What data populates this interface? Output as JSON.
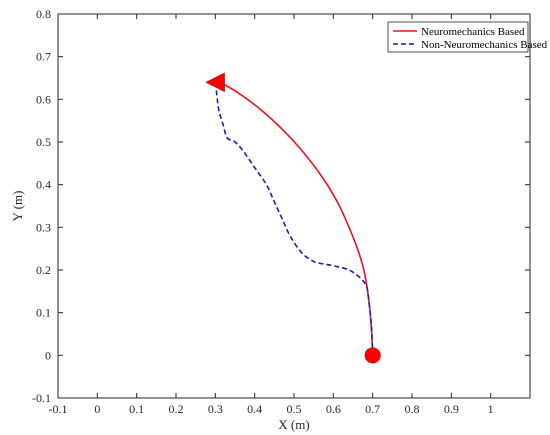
{
  "chart_data": {
    "type": "line",
    "xlabel": "X (m)",
    "ylabel": "Y (m)",
    "xlim": [
      -0.1,
      1.1
    ],
    "ylim": [
      -0.1,
      0.8
    ],
    "xticks": [
      -0.1,
      0,
      0.1,
      0.2,
      0.3,
      0.4,
      0.5,
      0.6,
      0.7,
      0.8,
      0.9,
      1
    ],
    "yticks": [
      -0.1,
      0,
      0.1,
      0.2,
      0.3,
      0.4,
      0.5,
      0.6,
      0.7,
      0.8
    ],
    "grid": false,
    "legend_position": "top-right",
    "series": [
      {
        "name": "Neuromechanics Based",
        "style": "solid",
        "color": "#e8141b",
        "x": [
          0.7,
          0.697,
          0.69,
          0.68,
          0.665,
          0.64,
          0.61,
          0.57,
          0.52,
          0.47,
          0.41,
          0.35,
          0.3
        ],
        "y": [
          0.0,
          0.06,
          0.13,
          0.19,
          0.24,
          0.3,
          0.36,
          0.42,
          0.48,
          0.53,
          0.58,
          0.62,
          0.645
        ]
      },
      {
        "name": "Non-Neuromechanics Based",
        "style": "dashed",
        "color": "#1a1ab8",
        "x": [
          0.7,
          0.698,
          0.695,
          0.69,
          0.685,
          0.67,
          0.64,
          0.6,
          0.57,
          0.55,
          0.52,
          0.49,
          0.47,
          0.45,
          0.43,
          0.4,
          0.37,
          0.35,
          0.33,
          0.32,
          0.31,
          0.305,
          0.3
        ],
        "y": [
          0.0,
          0.05,
          0.09,
          0.13,
          0.16,
          0.18,
          0.2,
          0.21,
          0.215,
          0.22,
          0.24,
          0.28,
          0.32,
          0.36,
          0.4,
          0.44,
          0.48,
          0.5,
          0.51,
          0.54,
          0.57,
          0.6,
          0.645
        ]
      }
    ],
    "start_marker": {
      "shape": "circle",
      "x": 0.7,
      "y": 0.0,
      "color": "#ff0000"
    },
    "end_marker": {
      "shape": "triangle",
      "x": 0.3,
      "y": 0.64,
      "color": "#ff0000"
    }
  }
}
